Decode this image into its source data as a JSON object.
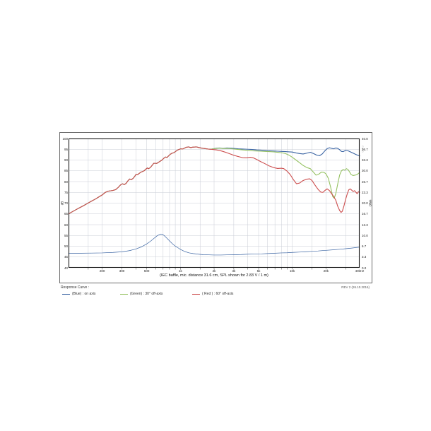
{
  "colors": {
    "blue": "#3a64a3",
    "green": "#96c263",
    "red": "#cc4d4d",
    "grid": "#c9cdd6",
    "border": "#1a1a1a",
    "text": "#1a1a1a"
  },
  "figure": {
    "rev_note": "REV 2 (26.10.2016)",
    "watermark": "CLIO"
  },
  "legend": {
    "title": "Response Curve :",
    "items": [
      {
        "color": "blue",
        "label": "(Blue) : on axis"
      },
      {
        "color": "green",
        "label": "(Green) : 30° off-axis"
      },
      {
        "color": "red",
        "label": "( Red ) : 60° off-axis"
      }
    ]
  },
  "chart_data": {
    "type": "line",
    "caption": "(IEC baffle, mic. distance 31.6 cm, SPL shown for 2.83 V / 1 m)",
    "x_axis": {
      "scale": "log",
      "min": 100,
      "max": 40000,
      "unit": "Hz",
      "tick_labels": [
        {
          "f": 200,
          "label": "200"
        },
        {
          "f": 300,
          "label": "300"
        },
        {
          "f": 500,
          "label": "500"
        },
        {
          "f": 1000,
          "label": "1k"
        },
        {
          "f": 2000,
          "label": "2k"
        },
        {
          "f": 3000,
          "label": "3k"
        },
        {
          "f": 5000,
          "label": "5k"
        },
        {
          "f": 10000,
          "label": "10k"
        },
        {
          "f": 20000,
          "label": "20k"
        },
        {
          "f": 40000,
          "label": "40kHz"
        }
      ],
      "gridlines": [
        150,
        200,
        300,
        400,
        500,
        600,
        700,
        800,
        900,
        1000,
        1500,
        2000,
        3000,
        4000,
        5000,
        6000,
        7000,
        8000,
        9000,
        10000,
        15000,
        20000,
        30000
      ]
    },
    "y_left": {
      "label": "dB",
      "min": 40,
      "max": 100,
      "ticks": [
        100,
        95,
        90,
        85,
        80,
        75,
        70,
        65,
        60,
        55,
        50,
        45,
        40
      ]
    },
    "y_right": {
      "label": "Ohm",
      "min": 0,
      "max": 40,
      "ticks": [
        "40.0",
        "36.7",
        "33.3",
        "30.0",
        "26.7",
        "23.3",
        "20.0",
        "16.7",
        "13.3",
        "10.0",
        "6.7",
        "3.3",
        "0.0"
      ]
    },
    "common_rise": [
      [
        100,
        65.0
      ],
      [
        108,
        66.0
      ],
      [
        116,
        66.9
      ],
      [
        126,
        67.9
      ],
      [
        136,
        68.8
      ],
      [
        148,
        69.9
      ],
      [
        160,
        70.9
      ],
      [
        174,
        71.9
      ],
      [
        188,
        73.0
      ],
      [
        200,
        73.8
      ],
      [
        212,
        74.9
      ],
      [
        224,
        75.5
      ],
      [
        236,
        75.7
      ],
      [
        250,
        75.9
      ],
      [
        264,
        76.3
      ],
      [
        278,
        77.3
      ],
      [
        292,
        78.5
      ],
      [
        304,
        79.0
      ],
      [
        314,
        78.6
      ],
      [
        326,
        79.1
      ],
      [
        340,
        80.4
      ],
      [
        352,
        81.2
      ],
      [
        364,
        80.9
      ],
      [
        378,
        81.5
      ],
      [
        390,
        82.4
      ],
      [
        402,
        83.4
      ],
      [
        414,
        83.2
      ],
      [
        428,
        83.8
      ],
      [
        444,
        84.4
      ],
      [
        460,
        84.7
      ],
      [
        476,
        85.1
      ],
      [
        492,
        85.8
      ],
      [
        505,
        86.3
      ],
      [
        520,
        86.0
      ],
      [
        538,
        86.5
      ],
      [
        558,
        87.5
      ],
      [
        578,
        88.5
      ],
      [
        598,
        88.5
      ],
      [
        614,
        88.4
      ],
      [
        634,
        88.9
      ],
      [
        658,
        89.4
      ],
      [
        684,
        90.0
      ],
      [
        710,
        90.8
      ],
      [
        736,
        91.4
      ],
      [
        760,
        91.2
      ],
      [
        786,
        92.0
      ],
      [
        814,
        92.7
      ],
      [
        844,
        93.2
      ],
      [
        874,
        93.4
      ],
      [
        906,
        94.0
      ],
      [
        940,
        94.6
      ],
      [
        972,
        94.9
      ],
      [
        1005,
        95.2
      ],
      [
        1045,
        95.1
      ],
      [
        1085,
        95.5
      ],
      [
        1125,
        95.9
      ],
      [
        1175,
        96.1
      ],
      [
        1235,
        95.8
      ],
      [
        1305,
        96.0
      ],
      [
        1385,
        96.1
      ],
      [
        1465,
        95.8
      ],
      [
        1555,
        95.5
      ],
      [
        1655,
        95.3
      ],
      [
        1760,
        95.1
      ],
      [
        1860,
        95.0
      ]
    ],
    "series": [
      {
        "name": "impedance",
        "color": "blue",
        "axis": "right",
        "stroke_width": 0.7,
        "include_common_rise": false,
        "points": [
          [
            100,
            4.5
          ],
          [
            130,
            4.5
          ],
          [
            160,
            4.55
          ],
          [
            200,
            4.6
          ],
          [
            250,
            4.75
          ],
          [
            300,
            4.95
          ],
          [
            350,
            5.3
          ],
          [
            400,
            5.8
          ],
          [
            450,
            6.5
          ],
          [
            500,
            7.4
          ],
          [
            540,
            8.2
          ],
          [
            580,
            9.1
          ],
          [
            620,
            9.9
          ],
          [
            650,
            10.3
          ],
          [
            670,
            10.45
          ],
          [
            690,
            10.35
          ],
          [
            720,
            9.9
          ],
          [
            760,
            9.1
          ],
          [
            800,
            8.3
          ],
          [
            850,
            7.4
          ],
          [
            900,
            6.7
          ],
          [
            950,
            6.2
          ],
          [
            1000,
            5.7
          ],
          [
            1100,
            5.0
          ],
          [
            1200,
            4.6
          ],
          [
            1300,
            4.4
          ],
          [
            1450,
            4.2
          ],
          [
            1600,
            4.05
          ],
          [
            1800,
            4.0
          ],
          [
            2000,
            3.95
          ],
          [
            2300,
            3.95
          ],
          [
            2600,
            4.0
          ],
          [
            3000,
            4.05
          ],
          [
            3500,
            4.1
          ],
          [
            4000,
            4.2
          ],
          [
            4600,
            4.25
          ],
          [
            5300,
            4.3
          ],
          [
            6000,
            4.4
          ],
          [
            7000,
            4.5
          ],
          [
            8000,
            4.6
          ],
          [
            9000,
            4.65
          ],
          [
            10000,
            4.75
          ],
          [
            11500,
            4.85
          ],
          [
            13000,
            4.95
          ],
          [
            15000,
            5.1
          ],
          [
            17000,
            5.2
          ],
          [
            20000,
            5.4
          ],
          [
            23000,
            5.55
          ],
          [
            26000,
            5.7
          ],
          [
            30000,
            5.9
          ],
          [
            34000,
            6.1
          ],
          [
            37000,
            6.25
          ],
          [
            40000,
            6.4
          ]
        ]
      },
      {
        "name": "on axis",
        "color": "blue",
        "axis": "left",
        "stroke_width": 1.1,
        "include_common_rise": true,
        "points": [
          [
            1950,
            95.2
          ],
          [
            2100,
            95.5
          ],
          [
            2250,
            95.6
          ],
          [
            2400,
            95.4
          ],
          [
            2600,
            95.6
          ],
          [
            2800,
            95.5
          ],
          [
            3000,
            95.4
          ],
          [
            3300,
            95.2
          ],
          [
            3600,
            95.1
          ],
          [
            4000,
            95.0
          ],
          [
            4400,
            94.9
          ],
          [
            4800,
            94.7
          ],
          [
            5200,
            94.6
          ],
          [
            5700,
            94.5
          ],
          [
            6200,
            94.3
          ],
          [
            6800,
            94.2
          ],
          [
            7400,
            94.1
          ],
          [
            8000,
            94.0
          ],
          [
            8700,
            93.9
          ],
          [
            9400,
            93.8
          ],
          [
            10000,
            93.7
          ],
          [
            10800,
            93.3
          ],
          [
            11600,
            93.0
          ],
          [
            12500,
            92.8
          ],
          [
            13500,
            93.2
          ],
          [
            14500,
            93.6
          ],
          [
            15500,
            93.0
          ],
          [
            16500,
            92.3
          ],
          [
            17500,
            92.0
          ],
          [
            18500,
            92.8
          ],
          [
            19500,
            94.2
          ],
          [
            20500,
            95.3
          ],
          [
            21500,
            95.7
          ],
          [
            22500,
            95.4
          ],
          [
            23500,
            95.2
          ],
          [
            24500,
            95.6
          ],
          [
            25500,
            95.4
          ],
          [
            26500,
            94.8
          ],
          [
            27500,
            94.0
          ],
          [
            28500,
            93.9
          ],
          [
            30000,
            94.5
          ],
          [
            31500,
            94.3
          ],
          [
            33000,
            93.8
          ],
          [
            35000,
            93.2
          ],
          [
            37000,
            92.6
          ],
          [
            38500,
            92.2
          ],
          [
            40000,
            91.9
          ]
        ]
      },
      {
        "name": "30° off-axis",
        "color": "green",
        "axis": "left",
        "stroke_width": 1.1,
        "include_common_rise": true,
        "points": [
          [
            1950,
            95.2
          ],
          [
            2100,
            95.4
          ],
          [
            2250,
            95.5
          ],
          [
            2400,
            95.3
          ],
          [
            2600,
            95.4
          ],
          [
            2800,
            95.3
          ],
          [
            3000,
            95.1
          ],
          [
            3300,
            94.9
          ],
          [
            3600,
            94.7
          ],
          [
            4000,
            94.5
          ],
          [
            4400,
            94.3
          ],
          [
            4800,
            94.2
          ],
          [
            5200,
            94.1
          ],
          [
            5700,
            94.0
          ],
          [
            6200,
            93.9
          ],
          [
            6800,
            93.8
          ],
          [
            7400,
            93.6
          ],
          [
            8000,
            93.4
          ],
          [
            8700,
            93.0
          ],
          [
            9400,
            92.2
          ],
          [
            10000,
            91.3
          ],
          [
            10800,
            90.0
          ],
          [
            11600,
            88.8
          ],
          [
            12500,
            87.5
          ],
          [
            13500,
            86.5
          ],
          [
            14500,
            86.0
          ],
          [
            15500,
            84.3
          ],
          [
            16300,
            83.0
          ],
          [
            17200,
            83.4
          ],
          [
            18200,
            84.4
          ],
          [
            19200,
            84.3
          ],
          [
            20000,
            83.6
          ],
          [
            21000,
            81.5
          ],
          [
            22000,
            77.5
          ],
          [
            23000,
            73.0
          ],
          [
            23700,
            72.3
          ],
          [
            24500,
            74.5
          ],
          [
            25500,
            79.0
          ],
          [
            26500,
            83.0
          ],
          [
            27500,
            85.0
          ],
          [
            28500,
            85.6
          ],
          [
            29500,
            85.3
          ],
          [
            30500,
            86.0
          ],
          [
            31500,
            85.6
          ],
          [
            32500,
            84.5
          ],
          [
            33500,
            83.3
          ],
          [
            35000,
            82.8
          ],
          [
            36500,
            83.0
          ],
          [
            38000,
            83.3
          ],
          [
            40000,
            84.2
          ]
        ]
      },
      {
        "name": "60° off-axis",
        "color": "red",
        "axis": "left",
        "stroke_width": 1.1,
        "include_common_rise": true,
        "points": [
          [
            1950,
            94.9
          ],
          [
            2100,
            94.7
          ],
          [
            2250,
            94.4
          ],
          [
            2400,
            94.0
          ],
          [
            2600,
            93.4
          ],
          [
            2800,
            92.8
          ],
          [
            3000,
            92.2
          ],
          [
            3300,
            91.6
          ],
          [
            3600,
            91.1
          ],
          [
            3900,
            91.0
          ],
          [
            4200,
            91.3
          ],
          [
            4500,
            91.0
          ],
          [
            4800,
            90.3
          ],
          [
            5200,
            89.3
          ],
          [
            5700,
            88.3
          ],
          [
            6200,
            87.3
          ],
          [
            6800,
            86.5
          ],
          [
            7400,
            86.1
          ],
          [
            8000,
            86.2
          ],
          [
            8400,
            86.0
          ],
          [
            9000,
            84.8
          ],
          [
            9600,
            83.2
          ],
          [
            10200,
            81.0
          ],
          [
            10900,
            79.0
          ],
          [
            11600,
            79.3
          ],
          [
            12400,
            80.4
          ],
          [
            13400,
            81.1
          ],
          [
            14300,
            81.3
          ],
          [
            15000,
            80.5
          ],
          [
            16000,
            78.3
          ],
          [
            17000,
            76.4
          ],
          [
            18000,
            75.1
          ],
          [
            18800,
            75.0
          ],
          [
            19600,
            75.9
          ],
          [
            20500,
            76.6
          ],
          [
            21500,
            75.8
          ],
          [
            22500,
            74.3
          ],
          [
            23500,
            73.0
          ],
          [
            24500,
            71.3
          ],
          [
            25500,
            68.5
          ],
          [
            26500,
            66.6
          ],
          [
            27300,
            65.7
          ],
          [
            28000,
            66.2
          ],
          [
            29000,
            68.8
          ],
          [
            30000,
            71.8
          ],
          [
            31000,
            74.3
          ],
          [
            32000,
            76.2
          ],
          [
            33000,
            76.6
          ],
          [
            34000,
            76.0
          ],
          [
            35000,
            75.4
          ],
          [
            36000,
            75.8
          ],
          [
            37000,
            75.1
          ],
          [
            38000,
            74.4
          ],
          [
            39000,
            75.3
          ],
          [
            40000,
            75.0
          ]
        ]
      }
    ]
  }
}
